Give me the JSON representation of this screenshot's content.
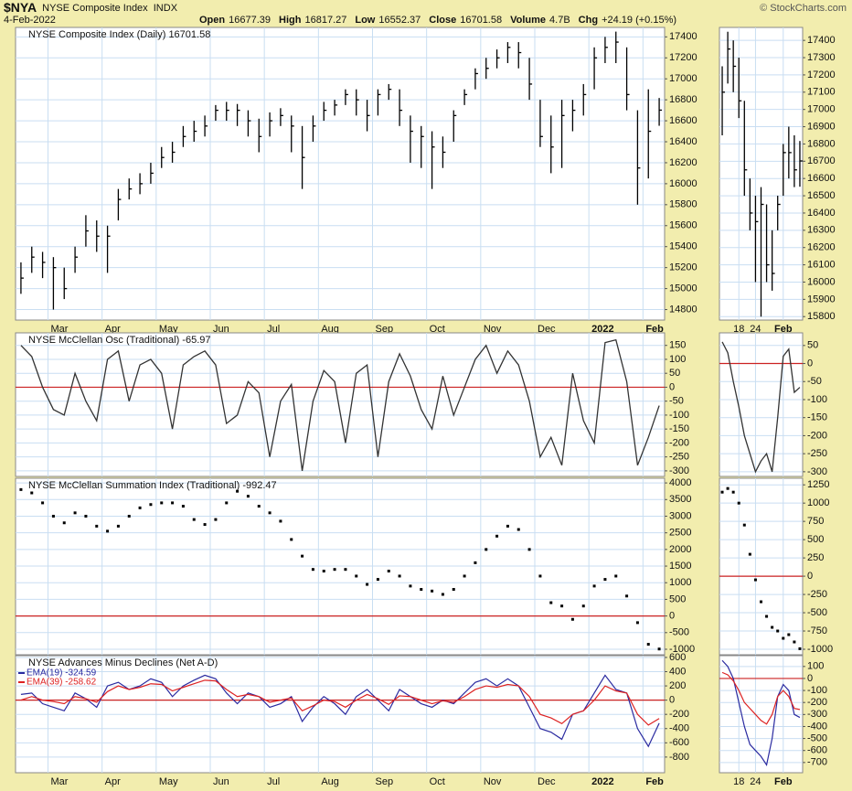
{
  "header": {
    "symbol": "$NYA",
    "name": "NYSE Composite Index",
    "exchange": "INDX",
    "date": "4-Feb-2022",
    "copyright": "© StockCharts.com",
    "stats": [
      {
        "label": "Open",
        "value": "16677.39"
      },
      {
        "label": "High",
        "value": "16817.27"
      },
      {
        "label": "Low",
        "value": "16552.37"
      },
      {
        "label": "Close",
        "value": "16701.58"
      },
      {
        "label": "Volume",
        "value": "4.7B"
      },
      {
        "label": "Chg",
        "value": "+24.19 (+0.15%)"
      }
    ]
  },
  "chart_data": [
    {
      "type": "ohlc",
      "title": "NYSE Composite Index (Daily) 16701.58",
      "color": "#000000",
      "xlim": [
        -0.5,
        59.5
      ],
      "xticks": [
        {
          "value": 2.5,
          "label": "Mar"
        },
        {
          "value": 7.5,
          "label": "Apr"
        },
        {
          "value": 12.5,
          "label": "May"
        },
        {
          "value": 17.5,
          "label": "Jun"
        },
        {
          "value": 22.5,
          "label": "Jul"
        },
        {
          "value": 27.5,
          "label": "Aug"
        },
        {
          "value": 32.5,
          "label": "Sep"
        },
        {
          "value": 37.5,
          "label": "Oct"
        },
        {
          "value": 42.5,
          "label": "Nov"
        },
        {
          "value": 47.5,
          "label": "Dec"
        },
        {
          "value": 52.5,
          "label": "2022"
        },
        {
          "value": 57.5,
          "label": "Feb"
        }
      ],
      "ylim": [
        14700,
        17490
      ],
      "yticks": [
        14800,
        15000,
        15200,
        15400,
        15600,
        15800,
        16000,
        16200,
        16400,
        16600,
        16800,
        17000,
        17200,
        17400
      ],
      "high": [
        15250,
        15400,
        15350,
        15300,
        15200,
        15400,
        15700,
        15650,
        15600,
        15950,
        16050,
        16100,
        16200,
        16350,
        16400,
        16550,
        16600,
        16650,
        16750,
        16780,
        16760,
        16700,
        16620,
        16680,
        16720,
        16650,
        16550,
        16650,
        16780,
        16800,
        16900,
        16900,
        16800,
        16900,
        16950,
        16900,
        16650,
        16550,
        16500,
        16450,
        16700,
        16900,
        17100,
        17200,
        17280,
        17350,
        17350,
        17200,
        16800,
        16650,
        16800,
        16800,
        16950,
        17300,
        17400,
        17450,
        17300,
        16700,
        16900,
        16817.27
      ],
      "low": [
        14950,
        15150,
        15100,
        14800,
        14900,
        15150,
        15400,
        15350,
        15150,
        15650,
        15850,
        15900,
        16000,
        16150,
        16200,
        16350,
        16400,
        16450,
        16600,
        16600,
        16550,
        16450,
        16300,
        16450,
        16550,
        16300,
        15950,
        16400,
        16600,
        16650,
        16750,
        16650,
        16500,
        16650,
        16800,
        16550,
        16200,
        16150,
        15950,
        16150,
        16400,
        16750,
        16900,
        17000,
        17100,
        17150,
        17100,
        16800,
        16350,
        16100,
        16150,
        16500,
        16650,
        16900,
        17150,
        17150,
        16700,
        15800,
        16050,
        16552.37
      ],
      "close": [
        15100,
        15300,
        15250,
        15200,
        15000,
        15300,
        15550,
        15500,
        15500,
        15850,
        15950,
        16000,
        16100,
        16250,
        16300,
        16450,
        16500,
        16550,
        16700,
        16700,
        16700,
        16600,
        16450,
        16600,
        16650,
        16550,
        16250,
        16550,
        16700,
        16750,
        16850,
        16800,
        16650,
        16850,
        16900,
        16700,
        16500,
        16450,
        16350,
        16300,
        16650,
        16850,
        17050,
        17100,
        17200,
        17300,
        17250,
        16950,
        16450,
        16350,
        16650,
        16700,
        16850,
        17200,
        17300,
        17350,
        16850,
        16150,
        16500,
        16701.58
      ]
    },
    {
      "type": "line",
      "title": "NYSE McClellan Osc (Traditional) -65.97",
      "color": "#333333",
      "hline": 0,
      "hline_color": "#cc2222",
      "xlim": [
        -0.5,
        59.5
      ],
      "ylim": [
        -320,
        195
      ],
      "yticks": [
        -300,
        -250,
        -200,
        -150,
        -100,
        -50,
        0,
        50,
        100,
        150
      ],
      "values": [
        150,
        110,
        0,
        -80,
        -100,
        50,
        -50,
        -120,
        100,
        130,
        -50,
        80,
        100,
        50,
        -150,
        80,
        110,
        130,
        80,
        -130,
        -100,
        20,
        -20,
        -250,
        -50,
        10,
        -300,
        -50,
        60,
        20,
        -200,
        50,
        80,
        -250,
        20,
        120,
        40,
        -80,
        -150,
        40,
        -100,
        0,
        100,
        150,
        50,
        130,
        80,
        -50,
        -250,
        -180,
        -280,
        50,
        -120,
        -200,
        160,
        170,
        20,
        -280,
        -180,
        -65.97
      ]
    },
    {
      "type": "dots",
      "title": "NYSE McClellan Summation Index (Traditional) -992.47",
      "color": "#000000",
      "hline": 0,
      "hline_color": "#cc2222",
      "xlim": [
        -0.5,
        59.5
      ],
      "ylim": [
        -1165,
        4140
      ],
      "yticks": [
        -1000,
        -500,
        0,
        500,
        1000,
        1500,
        2000,
        2500,
        3000,
        3500,
        4000
      ],
      "values": [
        3800,
        3700,
        3400,
        3000,
        2800,
        3100,
        3000,
        2700,
        2550,
        2700,
        3000,
        3250,
        3350,
        3400,
        3400,
        3300,
        2900,
        2750,
        2900,
        3400,
        3750,
        3600,
        3300,
        3100,
        2850,
        2300,
        1800,
        1400,
        1350,
        1400,
        1400,
        1200,
        950,
        1100,
        1350,
        1200,
        900,
        800,
        750,
        650,
        800,
        1200,
        1600,
        2000,
        2400,
        2700,
        2600,
        2000,
        1200,
        400,
        300,
        -100,
        300,
        900,
        1100,
        1200,
        600,
        -200,
        -850,
        -992.47
      ]
    },
    {
      "type": "line",
      "title": "NYSE Advances Minus Declines (Net A-D)",
      "hline": 0,
      "hline_color": "#cc2222",
      "xlim": [
        -0.5,
        59.5
      ],
      "xticks": [
        {
          "value": 2.5,
          "label": "Mar"
        },
        {
          "value": 7.5,
          "label": "Apr"
        },
        {
          "value": 12.5,
          "label": "May"
        },
        {
          "value": 17.5,
          "label": "Jun"
        },
        {
          "value": 22.5,
          "label": "Jul"
        },
        {
          "value": 27.5,
          "label": "Aug"
        },
        {
          "value": 32.5,
          "label": "Sep"
        },
        {
          "value": 37.5,
          "label": "Oct"
        },
        {
          "value": 42.5,
          "label": "Nov"
        },
        {
          "value": 47.5,
          "label": "Dec"
        },
        {
          "value": 52.5,
          "label": "2022"
        },
        {
          "value": 57.5,
          "label": "Feb"
        }
      ],
      "ylim": [
        -1020,
        625
      ],
      "yticks": [
        -800,
        -600,
        -400,
        -200,
        0,
        200,
        400,
        600
      ],
      "series": [
        {
          "name": "EMA(19) -324.59",
          "color": "#2a2aa0",
          "values": [
            80,
            100,
            -50,
            -100,
            -150,
            100,
            20,
            -100,
            200,
            250,
            150,
            200,
            300,
            250,
            50,
            200,
            280,
            350,
            300,
            100,
            -50,
            100,
            50,
            -100,
            -50,
            50,
            -300,
            -100,
            50,
            -50,
            -200,
            50,
            150,
            0,
            -150,
            150,
            50,
            -50,
            -100,
            0,
            -50,
            100,
            250,
            300,
            200,
            300,
            200,
            -100,
            -400,
            -450,
            -550,
            -200,
            -150,
            100,
            350,
            150,
            100,
            -400,
            -650,
            -324.59
          ]
        },
        {
          "name": "EMA(39) -258.62",
          "color": "#dd2222",
          "values": [
            0,
            50,
            0,
            -20,
            -50,
            50,
            20,
            -30,
            120,
            200,
            150,
            180,
            230,
            220,
            130,
            180,
            230,
            280,
            270,
            150,
            50,
            80,
            50,
            -30,
            0,
            30,
            -150,
            -80,
            0,
            -20,
            -100,
            0,
            80,
            20,
            -60,
            60,
            50,
            0,
            -50,
            -10,
            -30,
            50,
            150,
            200,
            180,
            220,
            200,
            50,
            -200,
            -250,
            -330,
            -200,
            -150,
            0,
            200,
            130,
            100,
            -200,
            -350,
            -258.62
          ]
        }
      ]
    },
    {
      "type": "ohlc",
      "color": "#000000",
      "xlim": [
        -0.5,
        14.5
      ],
      "xticks": [
        {
          "value": 3,
          "label": "18"
        },
        {
          "value": 6,
          "label": "24"
        },
        {
          "value": 11,
          "label": "Feb"
        }
      ],
      "ylim": [
        15780,
        17475
      ],
      "yticks": [
        15800,
        15900,
        16000,
        16100,
        16200,
        16300,
        16400,
        16500,
        16600,
        16700,
        16800,
        16900,
        17000,
        17100,
        17200,
        17300,
        17400
      ],
      "high": [
        17250,
        17450,
        17400,
        17300,
        17050,
        16600,
        16500,
        16550,
        16450,
        16300,
        16500,
        16800,
        16900,
        16850,
        16817.27
      ],
      "low": [
        16850,
        17150,
        17100,
        16950,
        16500,
        16300,
        16000,
        15800,
        16000,
        15950,
        16300,
        16500,
        16600,
        16550,
        16552.37
      ],
      "close": [
        17100,
        17350,
        17250,
        17050,
        16650,
        16400,
        16350,
        16450,
        16100,
        16050,
        16450,
        16750,
        16750,
        16650,
        16701.58
      ]
    },
    {
      "type": "line",
      "color": "#333333",
      "hline": 0,
      "hline_color": "#cc2222",
      "xlim": [
        -0.5,
        14.5
      ],
      "ylim": [
        -313,
        85
      ],
      "yticks": [
        -300,
        -250,
        -200,
        -150,
        -100,
        -50,
        0,
        50
      ],
      "values": [
        60,
        30,
        -50,
        -120,
        -200,
        -250,
        -300,
        -270,
        -250,
        -300,
        -150,
        20,
        40,
        -80,
        -65.97
      ]
    },
    {
      "type": "dots",
      "color": "#000000",
      "hline": 0,
      "hline_color": "#cc2222",
      "xlim": [
        -0.5,
        14.5
      ],
      "ylim": [
        -1075,
        1340
      ],
      "yticks": [
        -1000,
        -750,
        -500,
        -250,
        0,
        250,
        500,
        750,
        1000,
        1250
      ],
      "values": [
        1150,
        1200,
        1150,
        1000,
        700,
        300,
        -50,
        -350,
        -550,
        -700,
        -750,
        -850,
        -800,
        -900,
        -992.47
      ]
    },
    {
      "type": "line",
      "hline": 0,
      "hline_color": "#cc2222",
      "xlim": [
        -0.5,
        14.5
      ],
      "xticks": [
        {
          "value": 3,
          "label": "18"
        },
        {
          "value": 6,
          "label": "24"
        },
        {
          "value": 11,
          "label": "Feb"
        }
      ],
      "ylim": [
        -785,
        190
      ],
      "yticks": [
        -700,
        -600,
        -500,
        -400,
        -300,
        -200,
        -100,
        0,
        100
      ],
      "series": [
        {
          "color": "#2a2aa0",
          "values": [
            150,
            100,
            0,
            -200,
            -400,
            -550,
            -600,
            -650,
            -720,
            -500,
            -150,
            -50,
            -100,
            -300,
            -324.59
          ]
        },
        {
          "color": "#dd2222",
          "values": [
            50,
            30,
            -20,
            -100,
            -200,
            -250,
            -300,
            -350,
            -380,
            -300,
            -150,
            -100,
            -150,
            -250,
            -258.62
          ]
        }
      ]
    }
  ]
}
